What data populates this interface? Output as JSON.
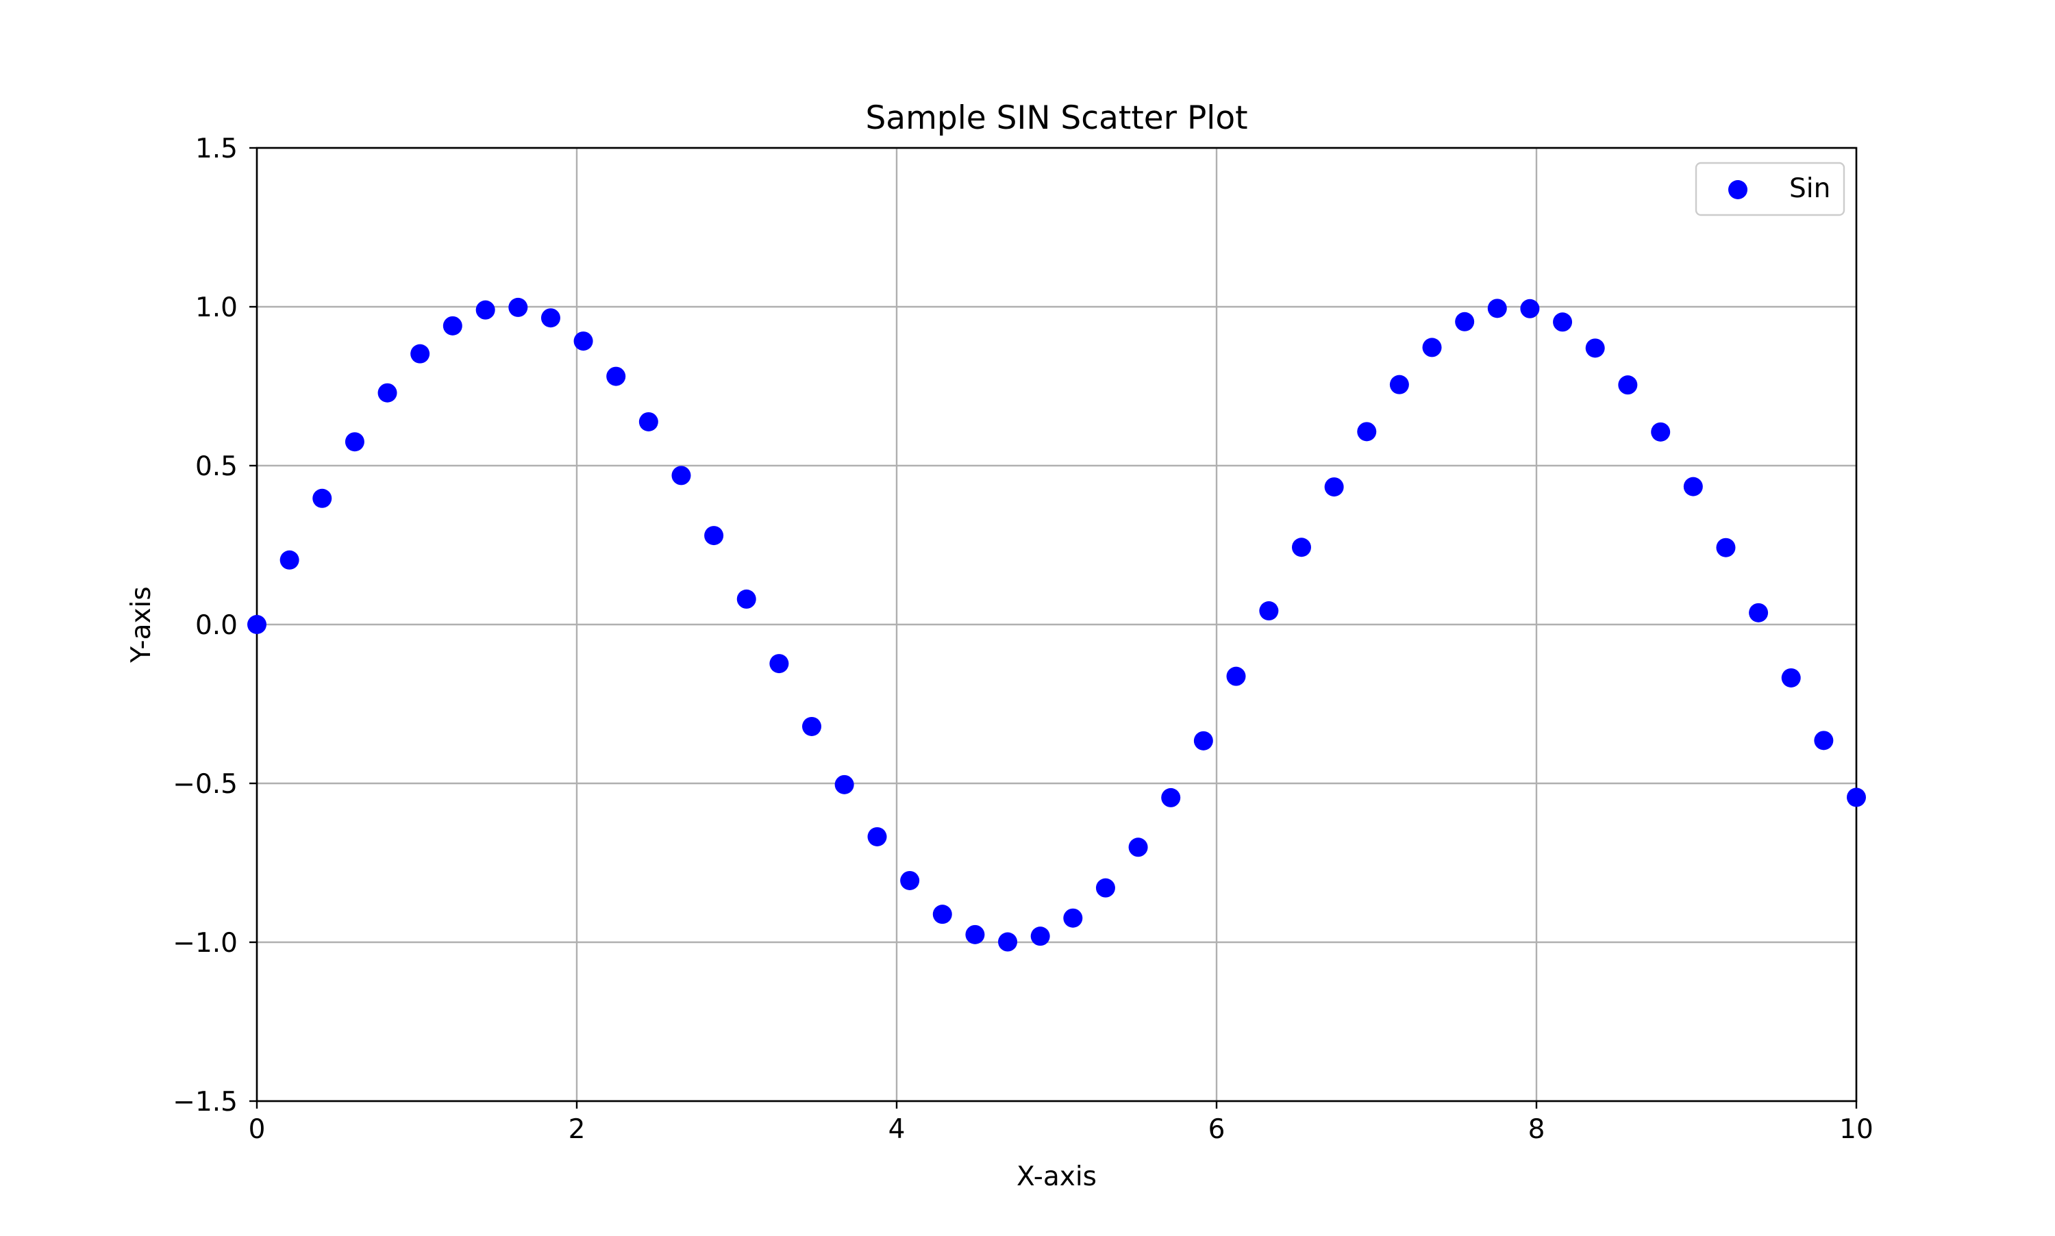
{
  "chart_data": {
    "type": "scatter",
    "title": "Sample SIN Scatter Plot",
    "xlabel": "X-axis",
    "ylabel": "Y-axis",
    "xlim": [
      0,
      10
    ],
    "ylim": [
      -1.5,
      1.5
    ],
    "xticks": [
      0,
      2,
      4,
      6,
      8,
      10
    ],
    "xtick_labels": [
      "0",
      "2",
      "4",
      "6",
      "8",
      "10"
    ],
    "yticks": [
      -1.5,
      -1.0,
      -0.5,
      0.0,
      0.5,
      1.0,
      1.5
    ],
    "ytick_labels": [
      "−1.5",
      "−1.0",
      "−0.5",
      "0.0",
      "0.5",
      "1.0",
      "1.5"
    ],
    "grid": true,
    "legend_position": "top-right",
    "series": [
      {
        "name": "Sin",
        "color": "#0000ff",
        "x": [
          0.0,
          0.204,
          0.408,
          0.612,
          0.816,
          1.02,
          1.224,
          1.429,
          1.633,
          1.837,
          2.041,
          2.245,
          2.449,
          2.653,
          2.857,
          3.061,
          3.265,
          3.469,
          3.673,
          3.878,
          4.082,
          4.286,
          4.49,
          4.694,
          4.898,
          5.102,
          5.306,
          5.51,
          5.714,
          5.918,
          6.122,
          6.327,
          6.531,
          6.735,
          6.939,
          7.143,
          7.347,
          7.551,
          7.755,
          7.959,
          8.163,
          8.367,
          8.571,
          8.776,
          8.98,
          9.184,
          9.388,
          9.592,
          9.796,
          10.0
        ],
        "y": [
          0.0,
          0.203,
          0.397,
          0.575,
          0.729,
          0.852,
          0.94,
          0.99,
          0.998,
          0.965,
          0.892,
          0.781,
          0.638,
          0.469,
          0.28,
          0.08,
          -0.123,
          -0.321,
          -0.504,
          -0.668,
          -0.806,
          -0.912,
          -0.976,
          -0.999,
          -0.981,
          -0.924,
          -0.829,
          -0.701,
          -0.545,
          -0.366,
          -0.163,
          0.043,
          0.243,
          0.433,
          0.607,
          0.755,
          0.872,
          0.953,
          0.995,
          0.994,
          0.952,
          0.87,
          0.754,
          0.606,
          0.434,
          0.242,
          0.037,
          -0.168,
          -0.365,
          -0.544
        ]
      }
    ]
  }
}
